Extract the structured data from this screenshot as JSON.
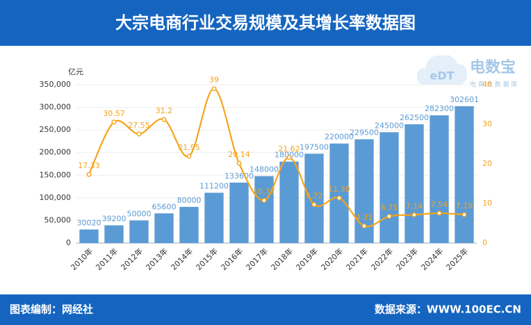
{
  "header": {
    "title": "大宗电商行业交易规模及其增长率数据图"
  },
  "logo": {
    "mark": "eDT",
    "name": "电数宝",
    "tagline": "电 商 大 数 据 库"
  },
  "chart_data": {
    "type": "combo",
    "y_label": "亿元",
    "categories": [
      "2010年",
      "2011年",
      "2012年",
      "2013年",
      "2014年",
      "2015年",
      "2016年",
      "2017年",
      "2018年",
      "2019年",
      "2020年",
      "2021年",
      "2022年",
      "2023年",
      "2024年",
      "2025年"
    ],
    "series": [
      {
        "type": "bar",
        "color": "#5b9bd5",
        "values": [
          30020,
          39200,
          50000,
          65600,
          80000,
          111200,
          133600,
          148000,
          180000,
          197500,
          220000,
          229500,
          245000,
          262500,
          282300,
          302601
        ]
      },
      {
        "type": "line",
        "color": "#f5a31a",
        "axis": "y2",
        "values": [
          17.33,
          30.57,
          27.55,
          31.2,
          21.95,
          39,
          20.14,
          10.77,
          21.62,
          9.72,
          11.39,
          4.31,
          6.75,
          7.14,
          7.54,
          7.19
        ]
      }
    ],
    "ylim": [
      0,
      350000
    ],
    "yticks": [
      0,
      {
        "value": 50000,
        "label": "50,000"
      },
      {
        "value": 100000,
        "label": "100,000"
      },
      {
        "value": 150000,
        "label": "150,000"
      },
      {
        "value": 200000,
        "label": "200,000"
      },
      {
        "value": 250000,
        "label": "250,000"
      },
      {
        "value": 300000,
        "label": "300,000"
      },
      {
        "value": 350000,
        "label": "350,000"
      }
    ],
    "y2lim": [
      0,
      40
    ],
    "y2ticks": [
      0,
      10,
      20,
      30,
      40
    ],
    "grid": true
  },
  "footer": {
    "left": "图表编制：网经社",
    "right": "数据来源：WWW.100EC.CN"
  }
}
